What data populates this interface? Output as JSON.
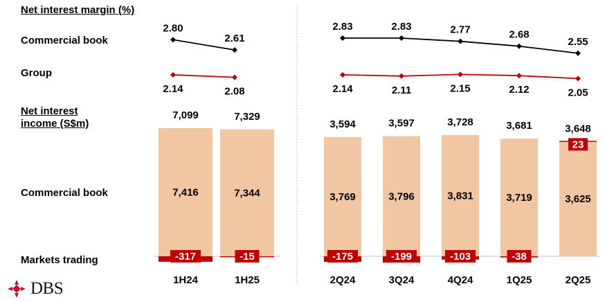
{
  "labels": {
    "nim_title": "Net interest margin (%)",
    "commercial_book": "Commercial book",
    "group": "Group",
    "nii_title_line1": "Net interest",
    "nii_title_line2": "income (S$m)",
    "commercial_book_bar": "Commercial book",
    "markets_trading": "Markets trading"
  },
  "logo": {
    "text": "DBS",
    "color": "#c8102e"
  },
  "colors": {
    "bar": "#f1c6a3",
    "negative": "#c00000",
    "commercial_line": "#000000",
    "group_line": "#c00000",
    "divider": "#bfbfbf"
  },
  "chart_data": [
    {
      "type": "line",
      "panel": "half-year",
      "categories": [
        "1H24",
        "1H25"
      ],
      "series": [
        {
          "name": "Commercial book",
          "values": [
            2.8,
            2.61
          ],
          "labels": [
            "2.80",
            "2.61"
          ]
        },
        {
          "name": "Group",
          "values": [
            2.14,
            2.08
          ],
          "labels": [
            "2.14",
            "2.08"
          ]
        }
      ]
    },
    {
      "type": "line",
      "panel": "quarterly",
      "categories": [
        "2Q24",
        "3Q24",
        "4Q24",
        "1Q25",
        "2Q25"
      ],
      "series": [
        {
          "name": "Commercial book",
          "values": [
            2.83,
            2.83,
            2.77,
            2.68,
            2.55
          ],
          "labels": [
            "2.83",
            "2.83",
            "2.77",
            "2.68",
            "2.55"
          ]
        },
        {
          "name": "Group",
          "values": [
            2.14,
            2.11,
            2.15,
            2.12,
            2.05
          ],
          "labels": [
            "2.14",
            "2.11",
            "2.15",
            "2.12",
            "2.05"
          ]
        }
      ]
    },
    {
      "type": "bar",
      "panel": "half-year",
      "categories": [
        "1H24",
        "1H25"
      ],
      "totals": [
        "7,099",
        "7,329"
      ],
      "series": [
        {
          "name": "Commercial book",
          "values": [
            7416,
            7344
          ],
          "labels": [
            "7,416",
            "7,344"
          ]
        },
        {
          "name": "Markets trading",
          "values": [
            -317,
            -15
          ],
          "labels": [
            "-317",
            "-15"
          ]
        }
      ]
    },
    {
      "type": "bar",
      "panel": "quarterly",
      "categories": [
        "2Q24",
        "3Q24",
        "4Q24",
        "1Q25",
        "2Q25"
      ],
      "totals": [
        "3,594",
        "3,597",
        "3,728",
        "3,681",
        "3,648"
      ],
      "series": [
        {
          "name": "Commercial book",
          "values": [
            3769,
            3796,
            3831,
            3719,
            3625
          ],
          "labels": [
            "3,769",
            "3,796",
            "3,831",
            "3,719",
            "3,625"
          ]
        },
        {
          "name": "Markets trading",
          "values": [
            -175,
            -199,
            -103,
            -38,
            23
          ],
          "labels": [
            "-175",
            "-199",
            "-103",
            "-38",
            "23"
          ]
        }
      ]
    }
  ]
}
